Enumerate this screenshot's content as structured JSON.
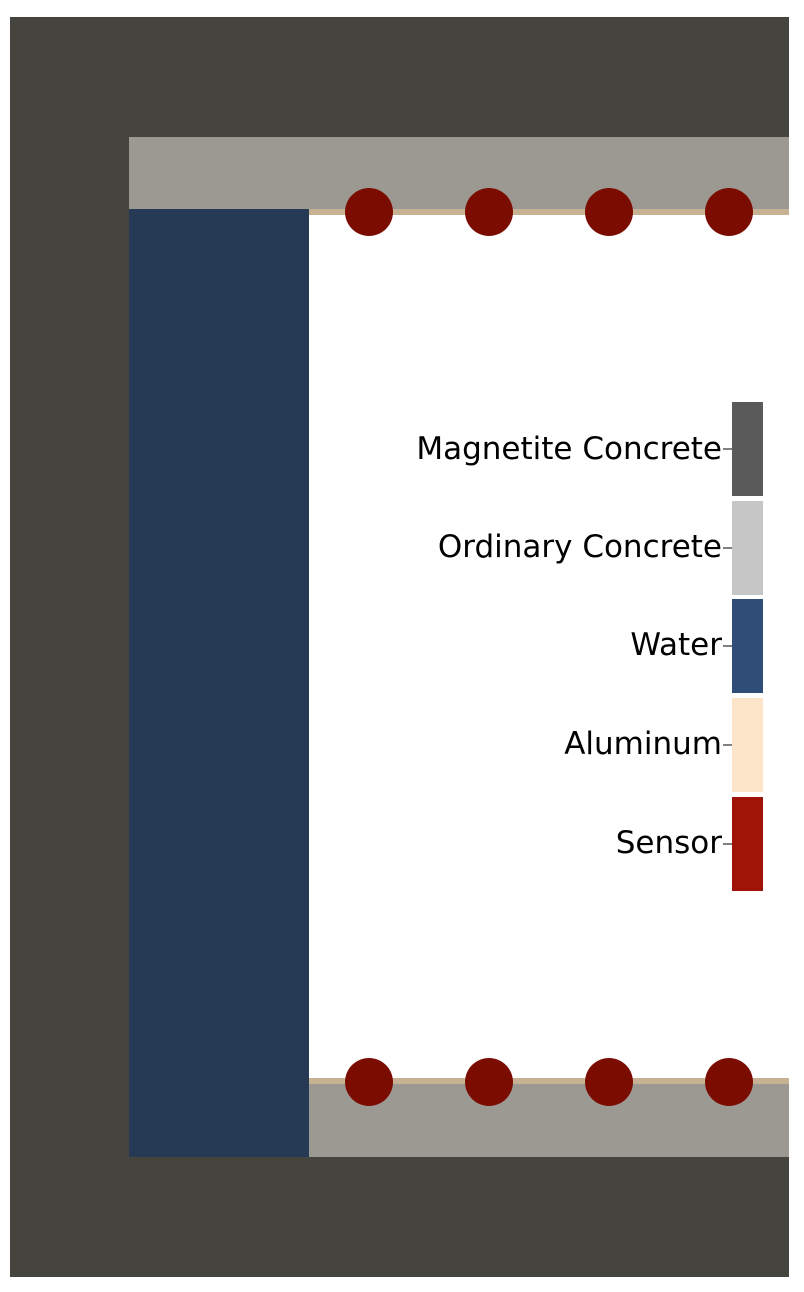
{
  "legend": {
    "items": [
      {
        "label": "Magnetite Concrete",
        "color": "#5a5a5a",
        "icon": "magnetite-concrete-swatch"
      },
      {
        "label": "Ordinary Concrete",
        "color": "#c6c6c6",
        "icon": "ordinary-concrete-swatch"
      },
      {
        "label": "Water",
        "color": "#2f4d76",
        "icon": "water-swatch"
      },
      {
        "label": "Aluminum",
        "color": "#fce5c9",
        "icon": "aluminum-swatch"
      },
      {
        "label": "Sensor",
        "color": "#a01407",
        "icon": "sensor-swatch"
      }
    ]
  },
  "geometry_colors": {
    "magnetite_concrete": "#46443f",
    "ordinary_concrete": "#9c9992",
    "water": "#263a56",
    "aluminum": "#c8b294",
    "sensor": "#7b0c02",
    "cavity": "#ffffff"
  },
  "sensors": {
    "top_row_count": 4,
    "bottom_row_count": 4
  }
}
